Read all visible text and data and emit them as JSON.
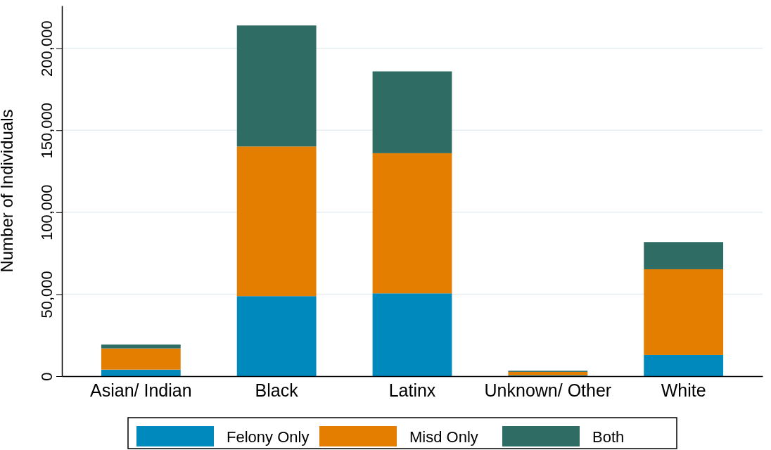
{
  "chart_data": {
    "type": "bar",
    "stacked": true,
    "ylabel": "Number of Individuals",
    "categories": [
      "Asian/ Indian",
      "Black",
      "Latinx",
      "Unknown/ Other",
      "White"
    ],
    "series": [
      {
        "name": "Felony Only",
        "color": "#0089bd",
        "values": [
          4000,
          48800,
          50500,
          500,
          12900
        ]
      },
      {
        "name": "Misd Only",
        "color": "#e37e00",
        "values": [
          12900,
          91300,
          85500,
          2100,
          52300
        ]
      },
      {
        "name": "Both",
        "color": "#2f6c64",
        "values": [
          2400,
          73800,
          49900,
          700,
          16600
        ]
      }
    ],
    "ylim": [
      0,
      226000
    ],
    "yticks": [
      {
        "value": 0,
        "label": "0"
      },
      {
        "value": 50000,
        "label": "50,000"
      },
      {
        "value": 100000,
        "label": "100,000"
      },
      {
        "value": 150000,
        "label": "150,000"
      },
      {
        "value": 200000,
        "label": "200,000"
      }
    ],
    "grid": "y",
    "legend": "bottom"
  }
}
